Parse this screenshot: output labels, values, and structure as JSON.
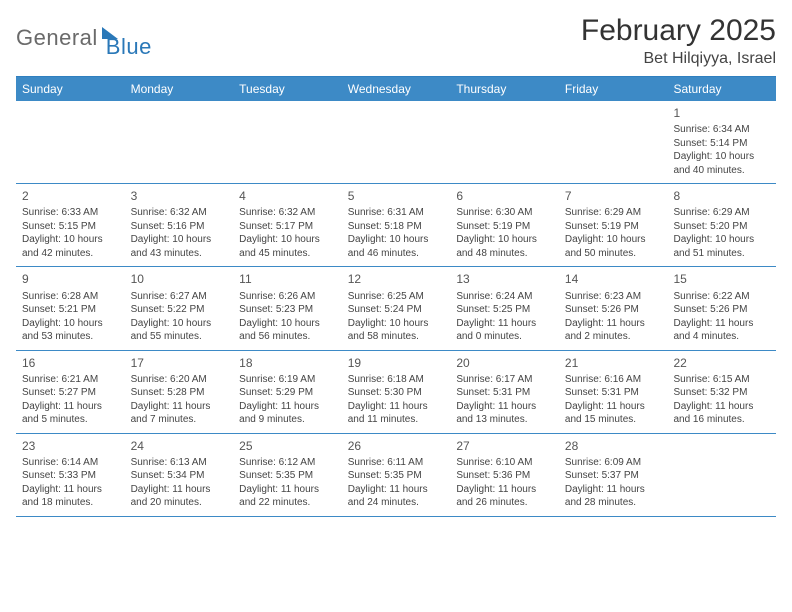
{
  "logo": {
    "part1": "General",
    "part2": "Blue"
  },
  "header": {
    "month_title": "February 2025",
    "location": "Bet Hilqiyya, Israel"
  },
  "colors": {
    "header_bg": "#3d8ac6",
    "header_fg": "#ffffff",
    "rule": "#3d8ac6",
    "accent": "#2a78b8",
    "text": "#333333"
  },
  "dow": [
    "Sunday",
    "Monday",
    "Tuesday",
    "Wednesday",
    "Thursday",
    "Friday",
    "Saturday"
  ],
  "weeks": [
    [
      null,
      null,
      null,
      null,
      null,
      null,
      {
        "n": "1",
        "sunrise": "Sunrise: 6:34 AM",
        "sunset": "Sunset: 5:14 PM",
        "day1": "Daylight: 10 hours",
        "day2": "and 40 minutes."
      }
    ],
    [
      {
        "n": "2",
        "sunrise": "Sunrise: 6:33 AM",
        "sunset": "Sunset: 5:15 PM",
        "day1": "Daylight: 10 hours",
        "day2": "and 42 minutes."
      },
      {
        "n": "3",
        "sunrise": "Sunrise: 6:32 AM",
        "sunset": "Sunset: 5:16 PM",
        "day1": "Daylight: 10 hours",
        "day2": "and 43 minutes."
      },
      {
        "n": "4",
        "sunrise": "Sunrise: 6:32 AM",
        "sunset": "Sunset: 5:17 PM",
        "day1": "Daylight: 10 hours",
        "day2": "and 45 minutes."
      },
      {
        "n": "5",
        "sunrise": "Sunrise: 6:31 AM",
        "sunset": "Sunset: 5:18 PM",
        "day1": "Daylight: 10 hours",
        "day2": "and 46 minutes."
      },
      {
        "n": "6",
        "sunrise": "Sunrise: 6:30 AM",
        "sunset": "Sunset: 5:19 PM",
        "day1": "Daylight: 10 hours",
        "day2": "and 48 minutes."
      },
      {
        "n": "7",
        "sunrise": "Sunrise: 6:29 AM",
        "sunset": "Sunset: 5:19 PM",
        "day1": "Daylight: 10 hours",
        "day2": "and 50 minutes."
      },
      {
        "n": "8",
        "sunrise": "Sunrise: 6:29 AM",
        "sunset": "Sunset: 5:20 PM",
        "day1": "Daylight: 10 hours",
        "day2": "and 51 minutes."
      }
    ],
    [
      {
        "n": "9",
        "sunrise": "Sunrise: 6:28 AM",
        "sunset": "Sunset: 5:21 PM",
        "day1": "Daylight: 10 hours",
        "day2": "and 53 minutes."
      },
      {
        "n": "10",
        "sunrise": "Sunrise: 6:27 AM",
        "sunset": "Sunset: 5:22 PM",
        "day1": "Daylight: 10 hours",
        "day2": "and 55 minutes."
      },
      {
        "n": "11",
        "sunrise": "Sunrise: 6:26 AM",
        "sunset": "Sunset: 5:23 PM",
        "day1": "Daylight: 10 hours",
        "day2": "and 56 minutes."
      },
      {
        "n": "12",
        "sunrise": "Sunrise: 6:25 AM",
        "sunset": "Sunset: 5:24 PM",
        "day1": "Daylight: 10 hours",
        "day2": "and 58 minutes."
      },
      {
        "n": "13",
        "sunrise": "Sunrise: 6:24 AM",
        "sunset": "Sunset: 5:25 PM",
        "day1": "Daylight: 11 hours",
        "day2": "and 0 minutes."
      },
      {
        "n": "14",
        "sunrise": "Sunrise: 6:23 AM",
        "sunset": "Sunset: 5:26 PM",
        "day1": "Daylight: 11 hours",
        "day2": "and 2 minutes."
      },
      {
        "n": "15",
        "sunrise": "Sunrise: 6:22 AM",
        "sunset": "Sunset: 5:26 PM",
        "day1": "Daylight: 11 hours",
        "day2": "and 4 minutes."
      }
    ],
    [
      {
        "n": "16",
        "sunrise": "Sunrise: 6:21 AM",
        "sunset": "Sunset: 5:27 PM",
        "day1": "Daylight: 11 hours",
        "day2": "and 5 minutes."
      },
      {
        "n": "17",
        "sunrise": "Sunrise: 6:20 AM",
        "sunset": "Sunset: 5:28 PM",
        "day1": "Daylight: 11 hours",
        "day2": "and 7 minutes."
      },
      {
        "n": "18",
        "sunrise": "Sunrise: 6:19 AM",
        "sunset": "Sunset: 5:29 PM",
        "day1": "Daylight: 11 hours",
        "day2": "and 9 minutes."
      },
      {
        "n": "19",
        "sunrise": "Sunrise: 6:18 AM",
        "sunset": "Sunset: 5:30 PM",
        "day1": "Daylight: 11 hours",
        "day2": "and 11 minutes."
      },
      {
        "n": "20",
        "sunrise": "Sunrise: 6:17 AM",
        "sunset": "Sunset: 5:31 PM",
        "day1": "Daylight: 11 hours",
        "day2": "and 13 minutes."
      },
      {
        "n": "21",
        "sunrise": "Sunrise: 6:16 AM",
        "sunset": "Sunset: 5:31 PM",
        "day1": "Daylight: 11 hours",
        "day2": "and 15 minutes."
      },
      {
        "n": "22",
        "sunrise": "Sunrise: 6:15 AM",
        "sunset": "Sunset: 5:32 PM",
        "day1": "Daylight: 11 hours",
        "day2": "and 16 minutes."
      }
    ],
    [
      {
        "n": "23",
        "sunrise": "Sunrise: 6:14 AM",
        "sunset": "Sunset: 5:33 PM",
        "day1": "Daylight: 11 hours",
        "day2": "and 18 minutes."
      },
      {
        "n": "24",
        "sunrise": "Sunrise: 6:13 AM",
        "sunset": "Sunset: 5:34 PM",
        "day1": "Daylight: 11 hours",
        "day2": "and 20 minutes."
      },
      {
        "n": "25",
        "sunrise": "Sunrise: 6:12 AM",
        "sunset": "Sunset: 5:35 PM",
        "day1": "Daylight: 11 hours",
        "day2": "and 22 minutes."
      },
      {
        "n": "26",
        "sunrise": "Sunrise: 6:11 AM",
        "sunset": "Sunset: 5:35 PM",
        "day1": "Daylight: 11 hours",
        "day2": "and 24 minutes."
      },
      {
        "n": "27",
        "sunrise": "Sunrise: 6:10 AM",
        "sunset": "Sunset: 5:36 PM",
        "day1": "Daylight: 11 hours",
        "day2": "and 26 minutes."
      },
      {
        "n": "28",
        "sunrise": "Sunrise: 6:09 AM",
        "sunset": "Sunset: 5:37 PM",
        "day1": "Daylight: 11 hours",
        "day2": "and 28 minutes."
      },
      null
    ]
  ]
}
